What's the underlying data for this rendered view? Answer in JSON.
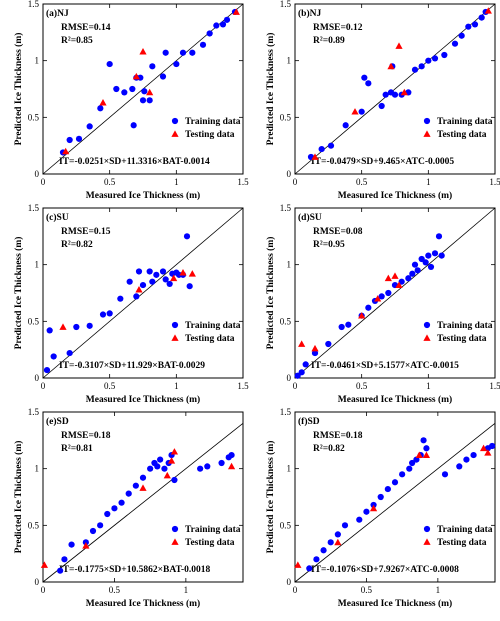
{
  "chart_data": [
    {
      "type": "scatter",
      "panel_label": "(a)NJ",
      "stats": [
        "RMSE=0.14",
        "R²=0.85"
      ],
      "equation": "IT=-0.0251×SD+11.3316×BAT-0.0014",
      "xlabel": "Measured Ice Thickness (m)",
      "ylabel": "Predicted Ice Thickness (m)",
      "xlim": [
        0,
        1.5
      ],
      "ylim": [
        0,
        1.5
      ],
      "xticks": [
        "0",
        "0.5",
        "1",
        "1.5"
      ],
      "yticks": [
        "0",
        "0.5",
        "1",
        "1.5"
      ],
      "legend_position": "bottom-right",
      "series": [
        {
          "name": "Training data",
          "marker": "circle",
          "color": "#0000ff",
          "points": [
            [
              0.15,
              0.19
            ],
            [
              0.2,
              0.3
            ],
            [
              0.27,
              0.31
            ],
            [
              0.35,
              0.42
            ],
            [
              0.43,
              0.58
            ],
            [
              0.5,
              0.97
            ],
            [
              0.55,
              0.75
            ],
            [
              0.61,
              0.72
            ],
            [
              0.67,
              0.75
            ],
            [
              0.68,
              0.43
            ],
            [
              0.7,
              0.85
            ],
            [
              0.73,
              0.85
            ],
            [
              0.75,
              0.65
            ],
            [
              0.76,
              0.73
            ],
            [
              0.8,
              0.65
            ],
            [
              0.82,
              0.95
            ],
            [
              0.9,
              0.86
            ],
            [
              0.92,
              1.07
            ],
            [
              1.0,
              0.97
            ],
            [
              1.05,
              1.07
            ],
            [
              1.12,
              1.07
            ],
            [
              1.2,
              1.14
            ],
            [
              1.25,
              1.24
            ],
            [
              1.3,
              1.31
            ],
            [
              1.35,
              1.32
            ],
            [
              1.38,
              1.36
            ],
            [
              1.44,
              1.43
            ]
          ]
        },
        {
          "name": "Testing data",
          "marker": "triangle",
          "color": "#ff0000",
          "points": [
            [
              0.17,
              0.2
            ],
            [
              0.45,
              0.63
            ],
            [
              0.7,
              0.86
            ],
            [
              0.75,
              1.08
            ],
            [
              0.8,
              0.72
            ],
            [
              1.45,
              1.43
            ]
          ]
        }
      ]
    },
    {
      "type": "scatter",
      "panel_label": "(b)NJ",
      "stats": [
        "RMSE=0.12",
        "R²=0.89"
      ],
      "equation": "IT=-0.0479×SD+9.465×ATC-0.0005",
      "xlabel": "Measured Ice Thickness (m)",
      "ylabel": "Predicted Ice Thickness (m)",
      "xlim": [
        0,
        1.5
      ],
      "ylim": [
        0,
        1.5
      ],
      "xticks": [
        "0",
        "0.5",
        "1",
        "1.5"
      ],
      "yticks": [
        "0",
        "0.5",
        "1",
        "1.5"
      ],
      "legend_position": "bottom-right",
      "series": [
        {
          "name": "Training data",
          "marker": "circle",
          "color": "#0000ff",
          "points": [
            [
              0.12,
              0.15
            ],
            [
              0.2,
              0.22
            ],
            [
              0.27,
              0.25
            ],
            [
              0.38,
              0.43
            ],
            [
              0.5,
              0.55
            ],
            [
              0.52,
              0.85
            ],
            [
              0.55,
              0.8
            ],
            [
              0.65,
              0.6
            ],
            [
              0.68,
              0.7
            ],
            [
              0.72,
              0.72
            ],
            [
              0.73,
              0.95
            ],
            [
              0.75,
              0.7
            ],
            [
              0.8,
              0.7
            ],
            [
              0.85,
              0.72
            ],
            [
              0.9,
              0.92
            ],
            [
              0.95,
              0.95
            ],
            [
              1.0,
              1.0
            ],
            [
              1.05,
              1.02
            ],
            [
              1.12,
              1.05
            ],
            [
              1.2,
              1.15
            ],
            [
              1.25,
              1.22
            ],
            [
              1.3,
              1.3
            ],
            [
              1.35,
              1.32
            ],
            [
              1.4,
              1.38
            ],
            [
              1.43,
              1.43
            ]
          ]
        },
        {
          "name": "Testing data",
          "marker": "triangle",
          "color": "#ff0000",
          "points": [
            [
              0.15,
              0.15
            ],
            [
              0.45,
              0.55
            ],
            [
              0.72,
              0.95
            ],
            [
              0.78,
              1.13
            ],
            [
              0.82,
              0.72
            ],
            [
              1.45,
              1.44
            ]
          ]
        }
      ]
    },
    {
      "type": "scatter",
      "panel_label": "(c)SU",
      "stats": [
        "RMSE=0.15",
        "R²=0.82"
      ],
      "equation": "IT=-0.3107×SD+11.929×BAT-0.0029",
      "xlabel": "Measured Ice Thickness (m)",
      "ylabel": "Predicted Ice Thickness (m)",
      "xlim": [
        0,
        1.5
      ],
      "ylim": [
        0,
        1.5
      ],
      "xticks": [
        "0",
        "0.5",
        "1",
        "1.5"
      ],
      "yticks": [
        "0",
        "0.5",
        "1",
        "1.5"
      ],
      "legend_position": "bottom-right",
      "series": [
        {
          "name": "Training data",
          "marker": "circle",
          "color": "#0000ff",
          "points": [
            [
              0.03,
              0.07
            ],
            [
              0.05,
              0.42
            ],
            [
              0.08,
              0.19
            ],
            [
              0.2,
              0.22
            ],
            [
              0.25,
              0.45
            ],
            [
              0.35,
              0.46
            ],
            [
              0.45,
              0.56
            ],
            [
              0.5,
              0.57
            ],
            [
              0.58,
              0.7
            ],
            [
              0.65,
              0.85
            ],
            [
              0.7,
              0.72
            ],
            [
              0.72,
              0.94
            ],
            [
              0.75,
              0.82
            ],
            [
              0.8,
              0.94
            ],
            [
              0.82,
              0.85
            ],
            [
              0.85,
              0.91
            ],
            [
              0.9,
              0.94
            ],
            [
              0.92,
              0.87
            ],
            [
              0.95,
              0.83
            ],
            [
              0.97,
              0.92
            ],
            [
              1.0,
              0.93
            ],
            [
              1.02,
              0.91
            ],
            [
              1.05,
              0.91
            ],
            [
              1.08,
              1.25
            ],
            [
              1.1,
              0.81
            ]
          ]
        },
        {
          "name": "Testing data",
          "marker": "triangle",
          "color": "#ff0000",
          "points": [
            [
              0.15,
              0.45
            ],
            [
              0.72,
              0.78
            ],
            [
              0.98,
              0.88
            ],
            [
              1.05,
              0.93
            ],
            [
              1.12,
              0.92
            ]
          ]
        }
      ]
    },
    {
      "type": "scatter",
      "panel_label": "(d)SU",
      "stats": [
        "RMSE=0.08",
        "R²=0.95"
      ],
      "equation": "IT=-0.0461×SD+5.1577×ATC-0.0015",
      "xlabel": "Measured Ice Thickness (m)",
      "ylabel": "Predicted Ice Thickness (m)",
      "xlim": [
        0,
        1.5
      ],
      "ylim": [
        0,
        1.5
      ],
      "xticks": [
        "0",
        "0.5",
        "1",
        "1.5"
      ],
      "yticks": [
        "0",
        "0.5",
        "1",
        "1.5"
      ],
      "legend_position": "bottom-right",
      "series": [
        {
          "name": "Training data",
          "marker": "circle",
          "color": "#0000ff",
          "points": [
            [
              0.02,
              0.02
            ],
            [
              0.05,
              0.05
            ],
            [
              0.08,
              0.12
            ],
            [
              0.15,
              0.22
            ],
            [
              0.25,
              0.3
            ],
            [
              0.35,
              0.45
            ],
            [
              0.4,
              0.47
            ],
            [
              0.5,
              0.55
            ],
            [
              0.55,
              0.62
            ],
            [
              0.6,
              0.68
            ],
            [
              0.65,
              0.72
            ],
            [
              0.7,
              0.75
            ],
            [
              0.75,
              0.82
            ],
            [
              0.8,
              0.85
            ],
            [
              0.85,
              0.88
            ],
            [
              0.88,
              0.92
            ],
            [
              0.9,
              1.0
            ],
            [
              0.92,
              0.95
            ],
            [
              0.95,
              1.05
            ],
            [
              0.98,
              1.02
            ],
            [
              1.0,
              1.08
            ],
            [
              1.02,
              0.98
            ],
            [
              1.05,
              1.1
            ],
            [
              1.08,
              1.25
            ],
            [
              1.1,
              1.08
            ]
          ]
        },
        {
          "name": "Testing data",
          "marker": "triangle",
          "color": "#ff0000",
          "points": [
            [
              0.05,
              0.3
            ],
            [
              0.15,
              0.26
            ],
            [
              0.5,
              0.55
            ],
            [
              0.62,
              0.7
            ],
            [
              0.7,
              0.88
            ],
            [
              0.75,
              0.9
            ],
            [
              0.78,
              0.82
            ]
          ]
        }
      ]
    },
    {
      "type": "scatter",
      "panel_label": "(e)SD",
      "stats": [
        "RMSE=0.18",
        "R²=0.81"
      ],
      "equation": "IT=-0.1775×SD+10.5862×BAT-0.0018",
      "xlabel": "Measured Ice Thickness (m)",
      "ylabel": "Predicted Ice Thickness (m)",
      "xlim": [
        0,
        1.4
      ],
      "ylim": [
        0,
        1.5
      ],
      "xticks": [
        "0",
        "0.5",
        "1"
      ],
      "yticks": [
        "0",
        "0.5",
        "1",
        "1.5"
      ],
      "legend_position": "bottom-right",
      "series": [
        {
          "name": "Training data",
          "marker": "circle",
          "color": "#0000ff",
          "points": [
            [
              0.12,
              0.1
            ],
            [
              0.15,
              0.2
            ],
            [
              0.2,
              0.33
            ],
            [
              0.3,
              0.35
            ],
            [
              0.35,
              0.45
            ],
            [
              0.4,
              0.5
            ],
            [
              0.45,
              0.6
            ],
            [
              0.5,
              0.65
            ],
            [
              0.55,
              0.7
            ],
            [
              0.6,
              0.78
            ],
            [
              0.65,
              0.85
            ],
            [
              0.7,
              0.92
            ],
            [
              0.75,
              1.0
            ],
            [
              0.78,
              1.05
            ],
            [
              0.8,
              1.02
            ],
            [
              0.82,
              1.08
            ],
            [
              0.85,
              1.0
            ],
            [
              0.88,
              1.05
            ],
            [
              0.9,
              1.12
            ],
            [
              0.92,
              0.9
            ],
            [
              1.1,
              1.0
            ],
            [
              1.15,
              1.02
            ],
            [
              1.25,
              1.05
            ],
            [
              1.3,
              1.1
            ],
            [
              1.32,
              1.12
            ]
          ]
        },
        {
          "name": "Testing data",
          "marker": "triangle",
          "color": "#ff0000",
          "points": [
            [
              0.01,
              0.15
            ],
            [
              0.3,
              0.32
            ],
            [
              0.7,
              0.83
            ],
            [
              0.87,
              0.94
            ],
            [
              0.9,
              1.07
            ],
            [
              0.92,
              1.15
            ],
            [
              1.32,
              1.02
            ]
          ]
        }
      ]
    },
    {
      "type": "scatter",
      "panel_label": "(f)SD",
      "stats": [
        "RMSE=0.18",
        "R²=0.82"
      ],
      "equation": "IT=-0.1076×SD+7.9267×ATC-0.0008",
      "xlabel": "Measured Ice Thickness (m)",
      "ylabel": "Predicted Ice Thickness (m)",
      "xlim": [
        0,
        1.4
      ],
      "ylim": [
        0,
        1.5
      ],
      "xticks": [
        "0",
        "0.5",
        "1"
      ],
      "yticks": [
        "0",
        "0.5",
        "1",
        "1.5"
      ],
      "legend_position": "bottom-right",
      "series": [
        {
          "name": "Training data",
          "marker": "circle",
          "color": "#0000ff",
          "points": [
            [
              0.1,
              0.12
            ],
            [
              0.15,
              0.2
            ],
            [
              0.2,
              0.28
            ],
            [
              0.25,
              0.35
            ],
            [
              0.3,
              0.42
            ],
            [
              0.35,
              0.5
            ],
            [
              0.45,
              0.55
            ],
            [
              0.5,
              0.62
            ],
            [
              0.55,
              0.68
            ],
            [
              0.6,
              0.75
            ],
            [
              0.65,
              0.82
            ],
            [
              0.7,
              0.88
            ],
            [
              0.75,
              0.95
            ],
            [
              0.8,
              1.0
            ],
            [
              0.82,
              1.05
            ],
            [
              0.85,
              1.08
            ],
            [
              0.88,
              1.12
            ],
            [
              0.9,
              1.25
            ],
            [
              0.92,
              1.18
            ],
            [
              1.05,
              0.95
            ],
            [
              1.15,
              1.02
            ],
            [
              1.2,
              1.08
            ],
            [
              1.25,
              1.12
            ],
            [
              1.35,
              1.18
            ],
            [
              1.38,
              1.2
            ]
          ]
        },
        {
          "name": "Testing data",
          "marker": "triangle",
          "color": "#ff0000",
          "points": [
            [
              0.02,
              0.15
            ],
            [
              0.3,
              0.35
            ],
            [
              0.55,
              0.65
            ],
            [
              0.87,
              1.12
            ],
            [
              0.92,
              1.12
            ],
            [
              1.32,
              1.18
            ],
            [
              1.35,
              1.14
            ]
          ]
        }
      ]
    }
  ]
}
